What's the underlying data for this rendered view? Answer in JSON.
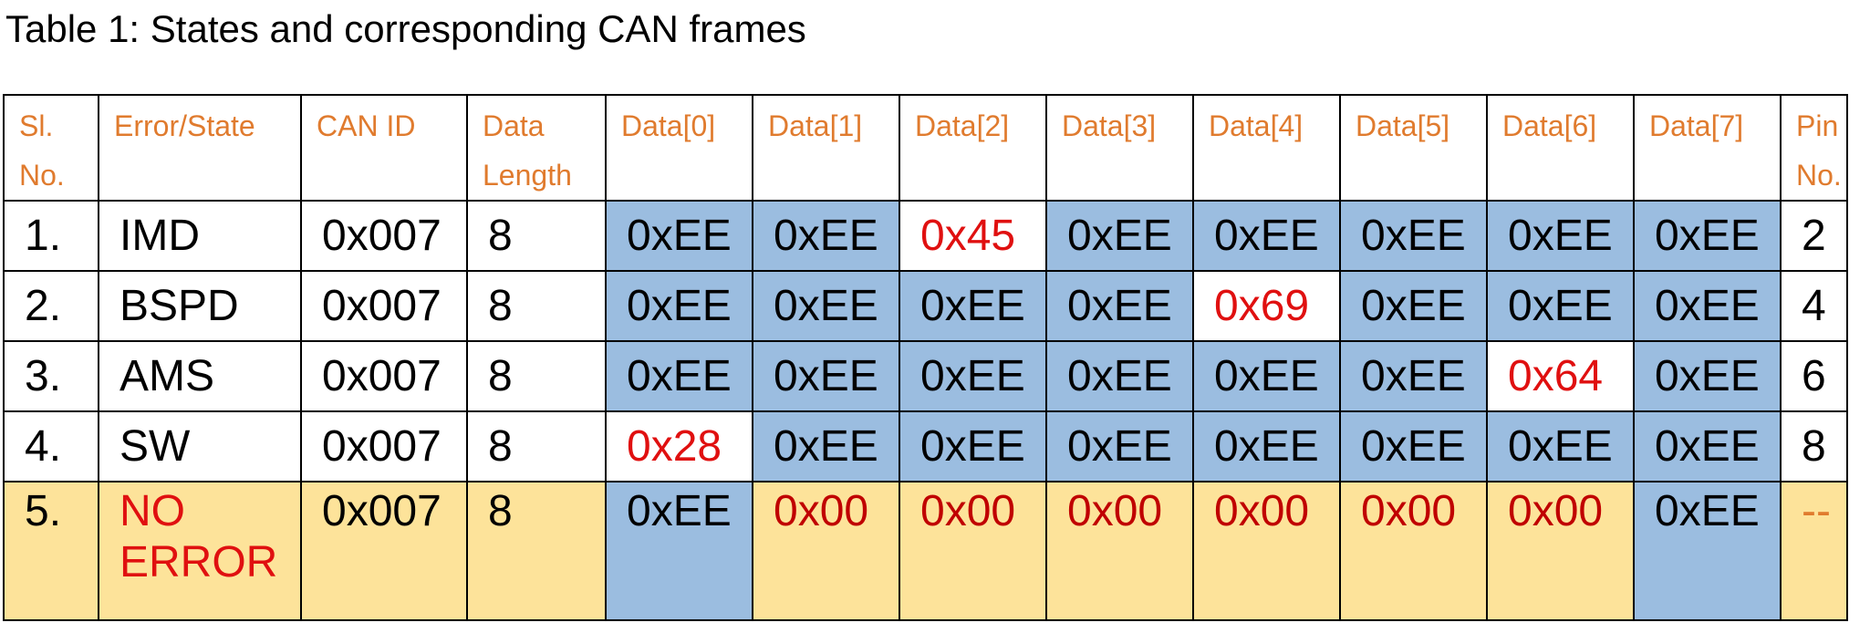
{
  "caption": "Table 1: States and corresponding CAN frames",
  "headers": [
    "Sl. No.",
    "Error/State",
    "CAN ID",
    "Data Length",
    "Data[0]",
    "Data[1]",
    "Data[2]",
    "Data[3]",
    "Data[4]",
    "Data[5]",
    "Data[6]",
    "Data[7]",
    "Pin No."
  ],
  "rows": [
    {
      "sl": "1.",
      "state": "IMD",
      "can_id": "0x007",
      "len": "8",
      "data": [
        "0xEE",
        "0xEE",
        "0x45",
        "0xEE",
        "0xEE",
        "0xEE",
        "0xEE",
        "0xEE"
      ],
      "pin": "2"
    },
    {
      "sl": "2.",
      "state": "BSPD",
      "can_id": "0x007",
      "len": "8",
      "data": [
        "0xEE",
        "0xEE",
        "0xEE",
        "0xEE",
        "0x69",
        "0xEE",
        "0xEE",
        "0xEE"
      ],
      "pin": "4"
    },
    {
      "sl": "3.",
      "state": "AMS",
      "can_id": "0x007",
      "len": "8",
      "data": [
        "0xEE",
        "0xEE",
        "0xEE",
        "0xEE",
        "0xEE",
        "0xEE",
        "0x64",
        "0xEE"
      ],
      "pin": "6"
    },
    {
      "sl": "4.",
      "state": "SW",
      "can_id": "0x007",
      "len": "8",
      "data": [
        "0x28",
        "0xEE",
        "0xEE",
        "0xEE",
        "0xEE",
        "0xEE",
        "0xEE",
        "0xEE"
      ],
      "pin": "8"
    },
    {
      "sl": "5.",
      "state": "NO ERROR",
      "can_id": "0x007",
      "len": "8",
      "data": [
        "0xEE",
        "0x00",
        "0x00",
        "0x00",
        "0x00",
        "0x00",
        "0x00",
        "0xEE"
      ],
      "pin": "--"
    }
  ],
  "colors": {
    "header_text": "#e07b2e",
    "highlight_red": "#e01010",
    "dark_red": "#c00000",
    "blue_fill": "#9bbde0",
    "yellow_fill": "#fde39a"
  }
}
